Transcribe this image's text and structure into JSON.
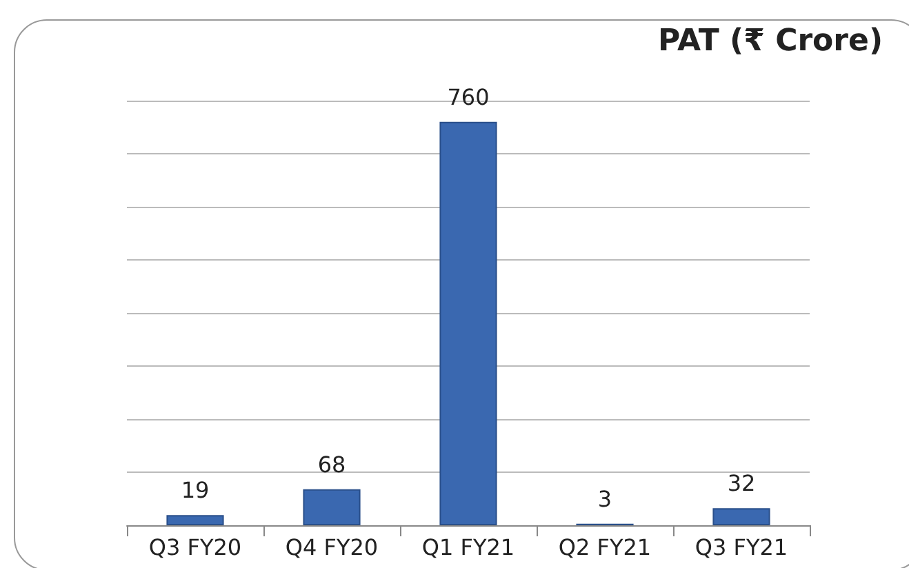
{
  "chart_data": {
    "type": "bar",
    "title": "PAT (₹ Crore)",
    "categories": [
      "Q3 FY20",
      "Q4 FY20",
      "Q1 FY21",
      "Q2 FY21",
      "Q3 FY21"
    ],
    "values": [
      19,
      68,
      760,
      3,
      32
    ],
    "color": "#3a68b0",
    "ylim": [
      0,
      800
    ],
    "yticks": [
      {
        "value": 0,
        "label": null
      },
      {
        "value": 100,
        "label": null
      },
      {
        "value": 200,
        "label": null
      },
      {
        "value": 300,
        "label": null
      },
      {
        "value": 400,
        "label": null
      },
      {
        "value": 500,
        "label": null
      },
      {
        "value": 600,
        "label": null
      },
      {
        "value": 700,
        "label": null
      },
      {
        "value": 800,
        "label": null
      }
    ],
    "grid": true,
    "data_labels": true
  }
}
